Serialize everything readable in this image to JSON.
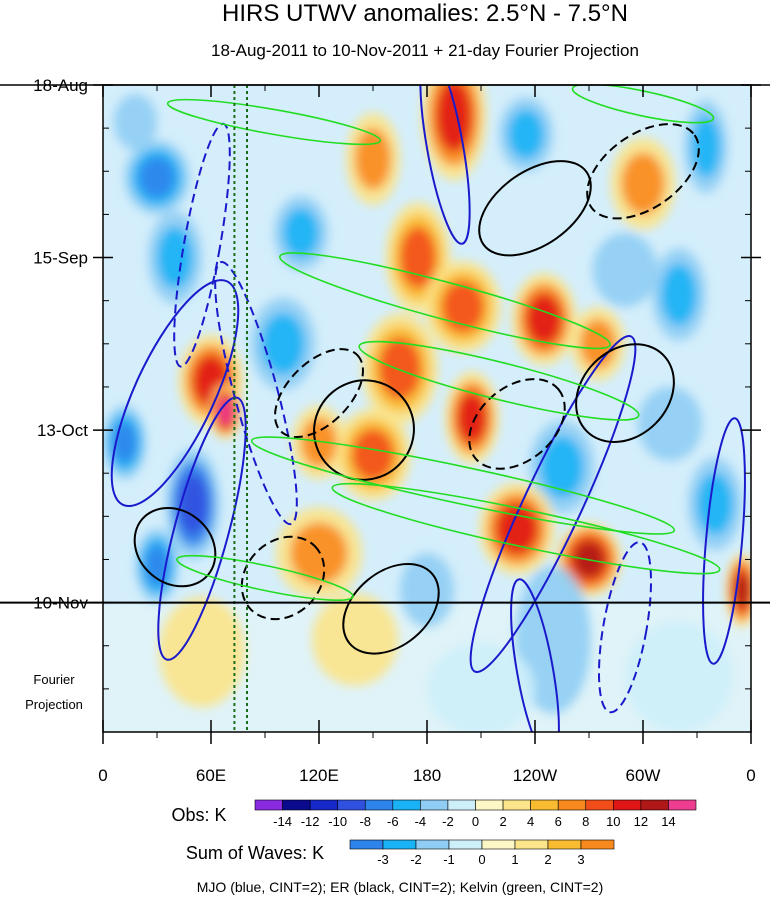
{
  "chart_data": {
    "type": "heatmap",
    "title": "HIRS UTWV anomalies: 2.5°N - 7.5°N",
    "subtitle": "18-Aug-2011 to 10-Nov-2011 + 21-day Fourier Projection",
    "x_axis": {
      "quantity": "longitude",
      "range_deg_east": [
        0,
        360
      ],
      "tick_values_deg_east": [
        0,
        60,
        120,
        180,
        240,
        300,
        360
      ],
      "tick_labels": [
        "0",
        "60E",
        "120E",
        "180",
        "120W",
        "60W",
        "0"
      ]
    },
    "y_axis": {
      "quantity": "date",
      "direction": "time increases downward",
      "start": "18-Aug-2011",
      "end_obs": "10-Nov-2011",
      "projection_days": 21,
      "total_days": 105,
      "tick_labels": [
        "18-Aug",
        "15-Sep",
        "13-Oct",
        "10-Nov"
      ],
      "tick_day_offsets": [
        0,
        28,
        56,
        84
      ],
      "projection_label": [
        "Fourier",
        "Projection"
      ]
    },
    "obs_colorbar": {
      "label": "Obs: K",
      "levels": [
        -14,
        -12,
        -10,
        -8,
        -6,
        -4,
        -2,
        0,
        2,
        4,
        6,
        8,
        10,
        12,
        14
      ],
      "colors": [
        "#8a2be2",
        "#0a0a8c",
        "#1628c8",
        "#3050e0",
        "#2f84ec",
        "#18b2f5",
        "#8fcdf4",
        "#cdeffa",
        "#fdf7c6",
        "#fce48a",
        "#f9bb30",
        "#f88a1d",
        "#f24e1a",
        "#e01515",
        "#b01818",
        "#ee3c90"
      ]
    },
    "waves_colorbar": {
      "label": "Sum of Waves: K",
      "levels": [
        -3,
        -2,
        -1,
        0,
        1,
        2,
        3
      ],
      "colors": [
        "#2f84ec",
        "#18b2f5",
        "#8fcdf4",
        "#cdeffa",
        "#fdf7c6",
        "#fce48a",
        "#f9bb30",
        "#f88a1d"
      ]
    },
    "vertical_markers_deg_east": [
      73,
      80
    ],
    "footnote": "MJO (blue, CINT=2); ER (black, CINT=2); Kelvin (green, CINT=2)",
    "anomaly_blobs": [
      {
        "lon": 195,
        "day": 5,
        "rlon": 12,
        "rday": 7,
        "value": 10
      },
      {
        "lon": 150,
        "day": 12,
        "rlon": 10,
        "rday": 5,
        "value": 6
      },
      {
        "lon": 235,
        "day": 8,
        "rlon": 10,
        "rday": 4,
        "value": -6
      },
      {
        "lon": 300,
        "day": 16,
        "rlon": 12,
        "rday": 5,
        "value": 6
      },
      {
        "lon": 335,
        "day": 10,
        "rlon": 8,
        "rday": 5,
        "value": -6
      },
      {
        "lon": 30,
        "day": 15,
        "rlon": 12,
        "rday": 4,
        "value": -8
      },
      {
        "lon": 40,
        "day": 28,
        "rlon": 10,
        "rday": 5,
        "value": -6
      },
      {
        "lon": 18,
        "day": 6,
        "rlon": 8,
        "rday": 3,
        "value": -4
      },
      {
        "lon": 110,
        "day": 24,
        "rlon": 10,
        "rday": 4,
        "value": -6
      },
      {
        "lon": 175,
        "day": 28,
        "rlon": 12,
        "rday": 6,
        "value": 8
      },
      {
        "lon": 200,
        "day": 36,
        "rlon": 14,
        "rday": 5,
        "value": 8
      },
      {
        "lon": 245,
        "day": 38,
        "rlon": 12,
        "rday": 5,
        "value": 10
      },
      {
        "lon": 165,
        "day": 46,
        "rlon": 14,
        "rday": 6,
        "value": 8
      },
      {
        "lon": 275,
        "day": 42,
        "rlon": 10,
        "rday": 4,
        "value": 6
      },
      {
        "lon": 320,
        "day": 34,
        "rlon": 10,
        "rday": 5,
        "value": -6
      },
      {
        "lon": 290,
        "day": 30,
        "rlon": 12,
        "rday": 4,
        "value": -4
      },
      {
        "lon": 100,
        "day": 42,
        "rlon": 12,
        "rday": 5,
        "value": -6
      },
      {
        "lon": 60,
        "day": 48,
        "rlon": 12,
        "rday": 5,
        "value": 10
      },
      {
        "lon": 68,
        "day": 53,
        "rlon": 6,
        "rday": 3,
        "value": 14
      },
      {
        "lon": 12,
        "day": 58,
        "rlon": 8,
        "rday": 4,
        "value": -8
      },
      {
        "lon": 50,
        "day": 68,
        "rlon": 10,
        "rday": 6,
        "value": -10
      },
      {
        "lon": 30,
        "day": 78,
        "rlon": 8,
        "rday": 4,
        "value": -8
      },
      {
        "lon": 150,
        "day": 60,
        "rlon": 14,
        "rday": 5,
        "value": 8
      },
      {
        "lon": 120,
        "day": 58,
        "rlon": 10,
        "rday": 4,
        "value": 6
      },
      {
        "lon": 205,
        "day": 54,
        "rlon": 10,
        "rday": 5,
        "value": 10
      },
      {
        "lon": 255,
        "day": 62,
        "rlon": 12,
        "rday": 5,
        "value": -6
      },
      {
        "lon": 315,
        "day": 55,
        "rlon": 12,
        "rday": 4,
        "value": -4
      },
      {
        "lon": 340,
        "day": 68,
        "rlon": 10,
        "rday": 5,
        "value": -6
      },
      {
        "lon": 230,
        "day": 72,
        "rlon": 14,
        "rday": 5,
        "value": 10
      },
      {
        "lon": 270,
        "day": 77,
        "rlon": 12,
        "rday": 4,
        "value": 12
      },
      {
        "lon": 120,
        "day": 76,
        "rlon": 16,
        "rday": 5,
        "value": 6
      },
      {
        "lon": 180,
        "day": 82,
        "rlon": 10,
        "rday": 4,
        "value": -4
      },
      {
        "lon": 355,
        "day": 82,
        "rlon": 6,
        "rday": 4,
        "value": 12
      },
      {
        "lon": 250,
        "day": 90,
        "rlon": 14,
        "rday": 8,
        "value": -4
      },
      {
        "lon": 55,
        "day": 92,
        "rlon": 16,
        "rday": 6,
        "value": 2
      },
      {
        "lon": 140,
        "day": 90,
        "rlon": 16,
        "rday": 5,
        "value": 2
      },
      {
        "lon": 320,
        "day": 96,
        "rlon": 20,
        "rday": 6,
        "value": -2
      },
      {
        "lon": 210,
        "day": 98,
        "rlon": 20,
        "rday": 5,
        "value": -2
      }
    ],
    "wave_contours": [
      {
        "wave": "MJO",
        "sign": "pos",
        "lon": 40,
        "day": 50,
        "rlon": 22,
        "rday": 20,
        "rot_deg": 25
      },
      {
        "wave": "MJO",
        "sign": "pos",
        "lon": 55,
        "day": 72,
        "rlon": 15,
        "rday": 22,
        "rot_deg": 15
      },
      {
        "wave": "MJO",
        "sign": "pos",
        "lon": 190,
        "day": 10,
        "rlon": 10,
        "rday": 16,
        "rot_deg": -10
      },
      {
        "wave": "MJO",
        "sign": "pos",
        "lon": 250,
        "day": 68,
        "rlon": 16,
        "rday": 30,
        "rot_deg": 25
      },
      {
        "wave": "MJO",
        "sign": "pos",
        "lon": 240,
        "day": 95,
        "rlon": 10,
        "rday": 15,
        "rot_deg": -10
      },
      {
        "wave": "MJO",
        "sign": "pos",
        "lon": 345,
        "day": 74,
        "rlon": 10,
        "rday": 20,
        "rot_deg": 5
      },
      {
        "wave": "MJO",
        "sign": "neg",
        "lon": 55,
        "day": 26,
        "rlon": 10,
        "rday": 20,
        "rot_deg": 10
      },
      {
        "wave": "MJO",
        "sign": "neg",
        "lon": 85,
        "day": 50,
        "rlon": 12,
        "rday": 22,
        "rot_deg": -15
      },
      {
        "wave": "MJO",
        "sign": "neg",
        "lon": 290,
        "day": 88,
        "rlon": 12,
        "rday": 14,
        "rot_deg": 10
      },
      {
        "wave": "ER",
        "sign": "pos",
        "lon": 145,
        "day": 56,
        "rlon": 28,
        "rday": 8,
        "rot_deg": -40
      },
      {
        "wave": "ER",
        "sign": "pos",
        "lon": 240,
        "day": 20,
        "rlon": 35,
        "rday": 6,
        "rot_deg": -35
      },
      {
        "wave": "ER",
        "sign": "pos",
        "lon": 290,
        "day": 50,
        "rlon": 30,
        "rday": 7,
        "rot_deg": -45
      },
      {
        "wave": "ER",
        "sign": "pos",
        "lon": 160,
        "day": 85,
        "rlon": 30,
        "rday": 6,
        "rot_deg": -40
      },
      {
        "wave": "ER",
        "sign": "pos",
        "lon": 40,
        "day": 75,
        "rlon": 20,
        "rday": 7,
        "rot_deg": -50
      },
      {
        "wave": "ER",
        "sign": "neg",
        "lon": 120,
        "day": 50,
        "rlon": 30,
        "rday": 5,
        "rot_deg": -45
      },
      {
        "wave": "ER",
        "sign": "neg",
        "lon": 230,
        "day": 55,
        "rlon": 30,
        "rday": 6,
        "rot_deg": -40
      },
      {
        "wave": "ER",
        "sign": "neg",
        "lon": 300,
        "day": 14,
        "rlon": 35,
        "rday": 6,
        "rot_deg": -35
      },
      {
        "wave": "ER",
        "sign": "neg",
        "lon": 100,
        "day": 80,
        "rlon": 25,
        "rday": 6,
        "rot_deg": -45
      },
      {
        "wave": "Kelvin",
        "sign": "pos",
        "lon": 190,
        "day": 35,
        "rlon": 95,
        "rday": 3,
        "rot_deg": 15
      },
      {
        "wave": "Kelvin",
        "sign": "pos",
        "lon": 200,
        "day": 65,
        "rlon": 120,
        "rday": 3,
        "rot_deg": 12
      },
      {
        "wave": "Kelvin",
        "sign": "pos",
        "lon": 235,
        "day": 72,
        "rlon": 110,
        "rday": 3,
        "rot_deg": 12
      },
      {
        "wave": "Kelvin",
        "sign": "pos",
        "lon": 95,
        "day": 6,
        "rlon": 60,
        "rday": 2,
        "rot_deg": 10
      },
      {
        "wave": "Kelvin",
        "sign": "pos",
        "lon": 300,
        "day": 3,
        "rlon": 40,
        "rday": 2,
        "rot_deg": 12
      },
      {
        "wave": "Kelvin",
        "sign": "pos",
        "lon": 220,
        "day": 48,
        "rlon": 80,
        "rday": 3,
        "rot_deg": 14
      },
      {
        "wave": "Kelvin",
        "sign": "pos",
        "lon": 90,
        "day": 80,
        "rlon": 50,
        "rday": 2,
        "rot_deg": 12
      }
    ]
  }
}
